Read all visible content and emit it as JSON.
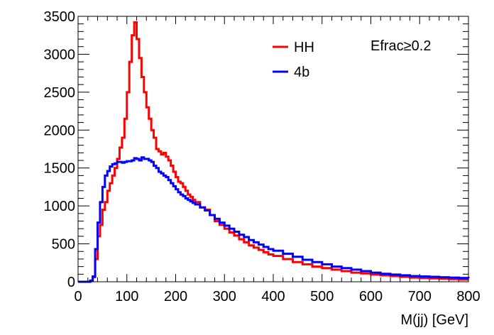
{
  "chart_data": {
    "type": "line",
    "title": "",
    "xlabel": "M(jj) [GeV]",
    "ylabel": "",
    "xlim": [
      0,
      800
    ],
    "ylim": [
      0,
      3500
    ],
    "grid": false,
    "legend_position": "top-center",
    "x_ticks": [
      "0",
      "100",
      "200",
      "300",
      "400",
      "500",
      "600",
      "700",
      "800"
    ],
    "y_ticks": [
      "0",
      "500",
      "1000",
      "1500",
      "2000",
      "2500",
      "3000",
      "3500"
    ],
    "annotation": "Efrac≥0.2",
    "series": [
      {
        "name": "HH",
        "color": "#ff0000",
        "points": [
          [
            0,
            0
          ],
          [
            20,
            0
          ],
          [
            25,
            15
          ],
          [
            30,
            60
          ],
          [
            35,
            300
          ],
          [
            40,
            600
          ],
          [
            45,
            750
          ],
          [
            50,
            950
          ],
          [
            55,
            1050
          ],
          [
            60,
            1200
          ],
          [
            65,
            1300
          ],
          [
            70,
            1400
          ],
          [
            75,
            1500
          ],
          [
            80,
            1620
          ],
          [
            85,
            1770
          ],
          [
            90,
            1900
          ],
          [
            95,
            2150
          ],
          [
            100,
            2500
          ],
          [
            105,
            2900
          ],
          [
            110,
            3250
          ],
          [
            115,
            3420
          ],
          [
            120,
            3200
          ],
          [
            125,
            2950
          ],
          [
            130,
            2700
          ],
          [
            135,
            2500
          ],
          [
            140,
            2300
          ],
          [
            145,
            2150
          ],
          [
            150,
            2000
          ],
          [
            155,
            1900
          ],
          [
            160,
            1750
          ],
          [
            165,
            1720
          ],
          [
            170,
            1680
          ],
          [
            175,
            1700
          ],
          [
            180,
            1650
          ],
          [
            185,
            1600
          ],
          [
            190,
            1530
          ],
          [
            195,
            1450
          ],
          [
            200,
            1380
          ],
          [
            205,
            1320
          ],
          [
            210,
            1300
          ],
          [
            215,
            1250
          ],
          [
            220,
            1200
          ],
          [
            225,
            1150
          ],
          [
            230,
            1120
          ],
          [
            235,
            1080
          ],
          [
            240,
            1050
          ],
          [
            250,
            980
          ],
          [
            260,
            950
          ],
          [
            270,
            880
          ],
          [
            280,
            800
          ],
          [
            290,
            750
          ],
          [
            300,
            700
          ],
          [
            310,
            650
          ],
          [
            320,
            610
          ],
          [
            330,
            560
          ],
          [
            340,
            520
          ],
          [
            350,
            480
          ],
          [
            360,
            450
          ],
          [
            370,
            420
          ],
          [
            380,
            390
          ],
          [
            390,
            360
          ],
          [
            400,
            340
          ],
          [
            420,
            300
          ],
          [
            440,
            260
          ],
          [
            460,
            230
          ],
          [
            480,
            200
          ],
          [
            500,
            180
          ],
          [
            520,
            160
          ],
          [
            540,
            140
          ],
          [
            560,
            120
          ],
          [
            580,
            110
          ],
          [
            600,
            95
          ],
          [
            620,
            85
          ],
          [
            640,
            75
          ],
          [
            660,
            65
          ],
          [
            680,
            55
          ],
          [
            700,
            50
          ],
          [
            720,
            45
          ],
          [
            740,
            40
          ],
          [
            760,
            35
          ],
          [
            780,
            30
          ],
          [
            800,
            30
          ]
        ]
      },
      {
        "name": "4b",
        "color": "#0000ff",
        "points": [
          [
            0,
            0
          ],
          [
            20,
            0
          ],
          [
            25,
            15
          ],
          [
            30,
            70
          ],
          [
            35,
            430
          ],
          [
            40,
            780
          ],
          [
            45,
            1050
          ],
          [
            50,
            1250
          ],
          [
            55,
            1400
          ],
          [
            60,
            1460
          ],
          [
            65,
            1520
          ],
          [
            70,
            1550
          ],
          [
            75,
            1560
          ],
          [
            80,
            1580
          ],
          [
            85,
            1580
          ],
          [
            90,
            1570
          ],
          [
            95,
            1580
          ],
          [
            100,
            1590
          ],
          [
            110,
            1600
          ],
          [
            115,
            1630
          ],
          [
            120,
            1620
          ],
          [
            125,
            1600
          ],
          [
            130,
            1640
          ],
          [
            135,
            1620
          ],
          [
            140,
            1620
          ],
          [
            145,
            1600
          ],
          [
            150,
            1580
          ],
          [
            155,
            1530
          ],
          [
            160,
            1500
          ],
          [
            165,
            1450
          ],
          [
            170,
            1430
          ],
          [
            175,
            1400
          ],
          [
            180,
            1380
          ],
          [
            185,
            1340
          ],
          [
            190,
            1300
          ],
          [
            195,
            1260
          ],
          [
            200,
            1220
          ],
          [
            205,
            1180
          ],
          [
            210,
            1150
          ],
          [
            215,
            1130
          ],
          [
            220,
            1100
          ],
          [
            225,
            1080
          ],
          [
            230,
            1060
          ],
          [
            235,
            1040
          ],
          [
            240,
            1020
          ],
          [
            250,
            980
          ],
          [
            260,
            940
          ],
          [
            270,
            880
          ],
          [
            280,
            830
          ],
          [
            290,
            780
          ],
          [
            300,
            740
          ],
          [
            310,
            700
          ],
          [
            320,
            660
          ],
          [
            330,
            620
          ],
          [
            340,
            590
          ],
          [
            350,
            550
          ],
          [
            360,
            520
          ],
          [
            370,
            490
          ],
          [
            380,
            460
          ],
          [
            390,
            430
          ],
          [
            400,
            410
          ],
          [
            420,
            370
          ],
          [
            440,
            330
          ],
          [
            460,
            290
          ],
          [
            480,
            260
          ],
          [
            500,
            230
          ],
          [
            520,
            200
          ],
          [
            540,
            180
          ],
          [
            560,
            160
          ],
          [
            580,
            140
          ],
          [
            600,
            120
          ],
          [
            620,
            105
          ],
          [
            640,
            95
          ],
          [
            660,
            85
          ],
          [
            680,
            75
          ],
          [
            700,
            70
          ],
          [
            720,
            65
          ],
          [
            740,
            60
          ],
          [
            760,
            55
          ],
          [
            780,
            50
          ],
          [
            800,
            45
          ]
        ]
      }
    ]
  }
}
